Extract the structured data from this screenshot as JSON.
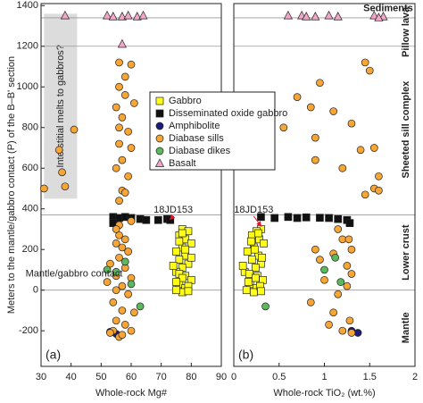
{
  "chart_data": [
    {
      "type": "scatter",
      "panel_label": "(a)",
      "ylabel": "Meters to the mantle/gabbro contact (P) of the B–B' section",
      "xlabel": "Whole-rock Mg#",
      "xlim": [
        30,
        90
      ],
      "xticks": [
        30,
        40,
        50,
        60,
        70,
        80,
        90
      ],
      "ylim": [
        -375,
        1410
      ],
      "yticks": [
        -200,
        0,
        200,
        400,
        600,
        800,
        1000,
        1200,
        1400
      ],
      "hlines": [
        1340,
        1200,
        370,
        0
      ],
      "shade": {
        "label": "Interstitial melts to gabbros?",
        "xlim": [
          31,
          42
        ],
        "ylim": [
          450,
          1360
        ]
      },
      "annotations": [
        {
          "text": "18JD153",
          "x": 74,
          "y": 395,
          "color": "#e8112d",
          "target": [
            73,
            348
          ]
        },
        {
          "text": "Mantle/gabbro contact",
          "x": 41,
          "y": 80
        }
      ],
      "series": [
        {
          "name": "Gabbro",
          "color": "#ffff1a",
          "marker": "square",
          "x": [
            77,
            79,
            76,
            78,
            80,
            77,
            75,
            78,
            76,
            79,
            77,
            75,
            78,
            80,
            76,
            78,
            77,
            75,
            79,
            77,
            76,
            78,
            80,
            74,
            76,
            79,
            77,
            75
          ],
          "y": [
            300,
            290,
            270,
            250,
            230,
            210,
            190,
            170,
            150,
            130,
            110,
            90,
            70,
            50,
            30,
            10,
            -10,
            0,
            20,
            280,
            240,
            200,
            160,
            120,
            80,
            -5,
            60,
            40
          ]
        },
        {
          "name": "Disseminated oxide gabbro",
          "color": "#111111",
          "marker": "square",
          "x": [
            54,
            56,
            58,
            60,
            63,
            65,
            69,
            72,
            73,
            54
          ],
          "y": [
            360,
            355,
            360,
            355,
            350,
            345,
            345,
            350,
            345,
            330
          ]
        },
        {
          "name": "Amphibolite",
          "color": "#1c1c7a",
          "marker": "circle",
          "x": [
            53,
            55
          ],
          "y": [
            -205,
            -215
          ]
        },
        {
          "name": "Diabase sills",
          "color": "#f7a534",
          "marker": "circle",
          "x": [
            56,
            60,
            58,
            56,
            58,
            55,
            61,
            57,
            56,
            59,
            41,
            36,
            56,
            60,
            57,
            55,
            59,
            37,
            31,
            38,
            57,
            56,
            58,
            56,
            58,
            55,
            57,
            59,
            56,
            53,
            58,
            55,
            60,
            52,
            57,
            55,
            59,
            54,
            57,
            55,
            58,
            54,
            56,
            60,
            53,
            57,
            61,
            56,
            60,
            55
          ],
          "y": [
            1120,
            1110,
            1050,
            1000,
            960,
            900,
            920,
            850,
            800,
            780,
            790,
            690,
            720,
            700,
            640,
            600,
            560,
            580,
            500,
            510,
            490,
            440,
            480,
            270,
            250,
            230,
            210,
            190,
            160,
            130,
            110,
            70,
            60,
            40,
            20,
            0,
            -20,
            -60,
            -100,
            -150,
            -170,
            -200,
            -230,
            -200,
            -210,
            -220,
            -110,
            320,
            340,
            300
          ]
        },
        {
          "name": "Diabase dikes",
          "color": "#5cb85c",
          "marker": "circle",
          "x": [
            58,
            55,
            60,
            52,
            63
          ],
          "y": [
            140,
            90,
            30,
            100,
            -80
          ]
        },
        {
          "name": "Basalt",
          "color": "#f2a6c8",
          "marker": "triangle",
          "x": [
            38,
            52,
            54,
            57,
            59,
            62,
            64,
            57
          ],
          "y": [
            1350,
            1350,
            1345,
            1345,
            1350,
            1345,
            1350,
            1210
          ]
        }
      ]
    },
    {
      "type": "scatter",
      "panel_label": "(b)",
      "xlabel": "Whole-rock TiO₂ (wt.%)",
      "xlim": [
        0,
        2
      ],
      "xticks": [
        0,
        0.5,
        1,
        1.5,
        2
      ],
      "ylim": [
        -375,
        1410
      ],
      "hlines": [
        1340,
        1200,
        370,
        0
      ],
      "zones": [
        "Sediments",
        "Pillow lava",
        "Sheeted sill complex",
        "Lower crust",
        "Mantle"
      ],
      "annotations": [
        {
          "text": "18JD153",
          "x": 0.22,
          "y": 395,
          "color": "#e8112d",
          "target": [
            0.3,
            315
          ]
        }
      ],
      "series": [
        {
          "color": "#ffff1a",
          "marker": "square",
          "x": [
            0.3,
            0.25,
            0.2,
            0.28,
            0.33,
            0.22,
            0.15,
            0.27,
            0.2,
            0.3,
            0.24,
            0.12,
            0.26,
            0.32,
            0.18,
            0.25,
            0.22,
            0.14,
            0.29,
            0.27,
            0.19,
            0.23,
            0.31,
            0.1,
            0.17,
            0.3,
            0.24,
            0.16
          ],
          "y": [
            300,
            290,
            270,
            250,
            230,
            210,
            190,
            170,
            150,
            130,
            110,
            90,
            70,
            50,
            30,
            10,
            -10,
            0,
            20,
            280,
            240,
            200,
            160,
            120,
            80,
            -5,
            60,
            40
          ]
        },
        {
          "color": "#111111",
          "marker": "square",
          "x": [
            0.3,
            0.45,
            0.6,
            0.7,
            0.8,
            0.95,
            1.05,
            1.15,
            1.25,
            1.28
          ],
          "y": [
            360,
            355,
            360,
            355,
            358,
            356,
            355,
            350,
            345,
            330
          ]
        },
        {
          "color": "#1c1c7a",
          "marker": "circle",
          "x": [
            1.37,
            1.3
          ],
          "y": [
            -210,
            -200
          ]
        },
        {
          "color": "#f7a534",
          "marker": "circle",
          "x": [
            1.45,
            1.5,
            0.95,
            0.7,
            0.85,
            1.1,
            1.3,
            0.4,
            0.55,
            0.9,
            1.55,
            1.4,
            0.9,
            1.2,
            1.6,
            1.55,
            1.6,
            1.45,
            1.15,
            1.2,
            1.3,
            1.1,
            0.95,
            1.25,
            1.3,
            1.0,
            1.25,
            1.15,
            0.85,
            1.1,
            1.2,
            1.3,
            1.05,
            1.28,
            0.9,
            1.27
          ],
          "y": [
            1120,
            1080,
            1020,
            950,
            900,
            880,
            820,
            900,
            800,
            750,
            700,
            690,
            640,
            600,
            560,
            500,
            490,
            470,
            300,
            250,
            200,
            180,
            150,
            120,
            80,
            50,
            20,
            -20,
            -60,
            -110,
            -200,
            -210,
            -170,
            -150,
            200,
            250
          ]
        },
        {
          "color": "#5cb85c",
          "marker": "circle",
          "x": [
            1.12,
            1.18,
            0.35,
            1.0
          ],
          "y": [
            160,
            40,
            -80,
            100
          ]
        },
        {
          "color": "#f2a6c8",
          "marker": "triangle",
          "x": [
            0.6,
            0.75,
            0.8,
            0.9,
            1.05,
            1.15,
            1.55,
            1.65,
            1.6
          ],
          "y": [
            1350,
            1350,
            1345,
            1345,
            1350,
            1345,
            1350,
            1345,
            1340
          ]
        }
      ]
    }
  ]
}
